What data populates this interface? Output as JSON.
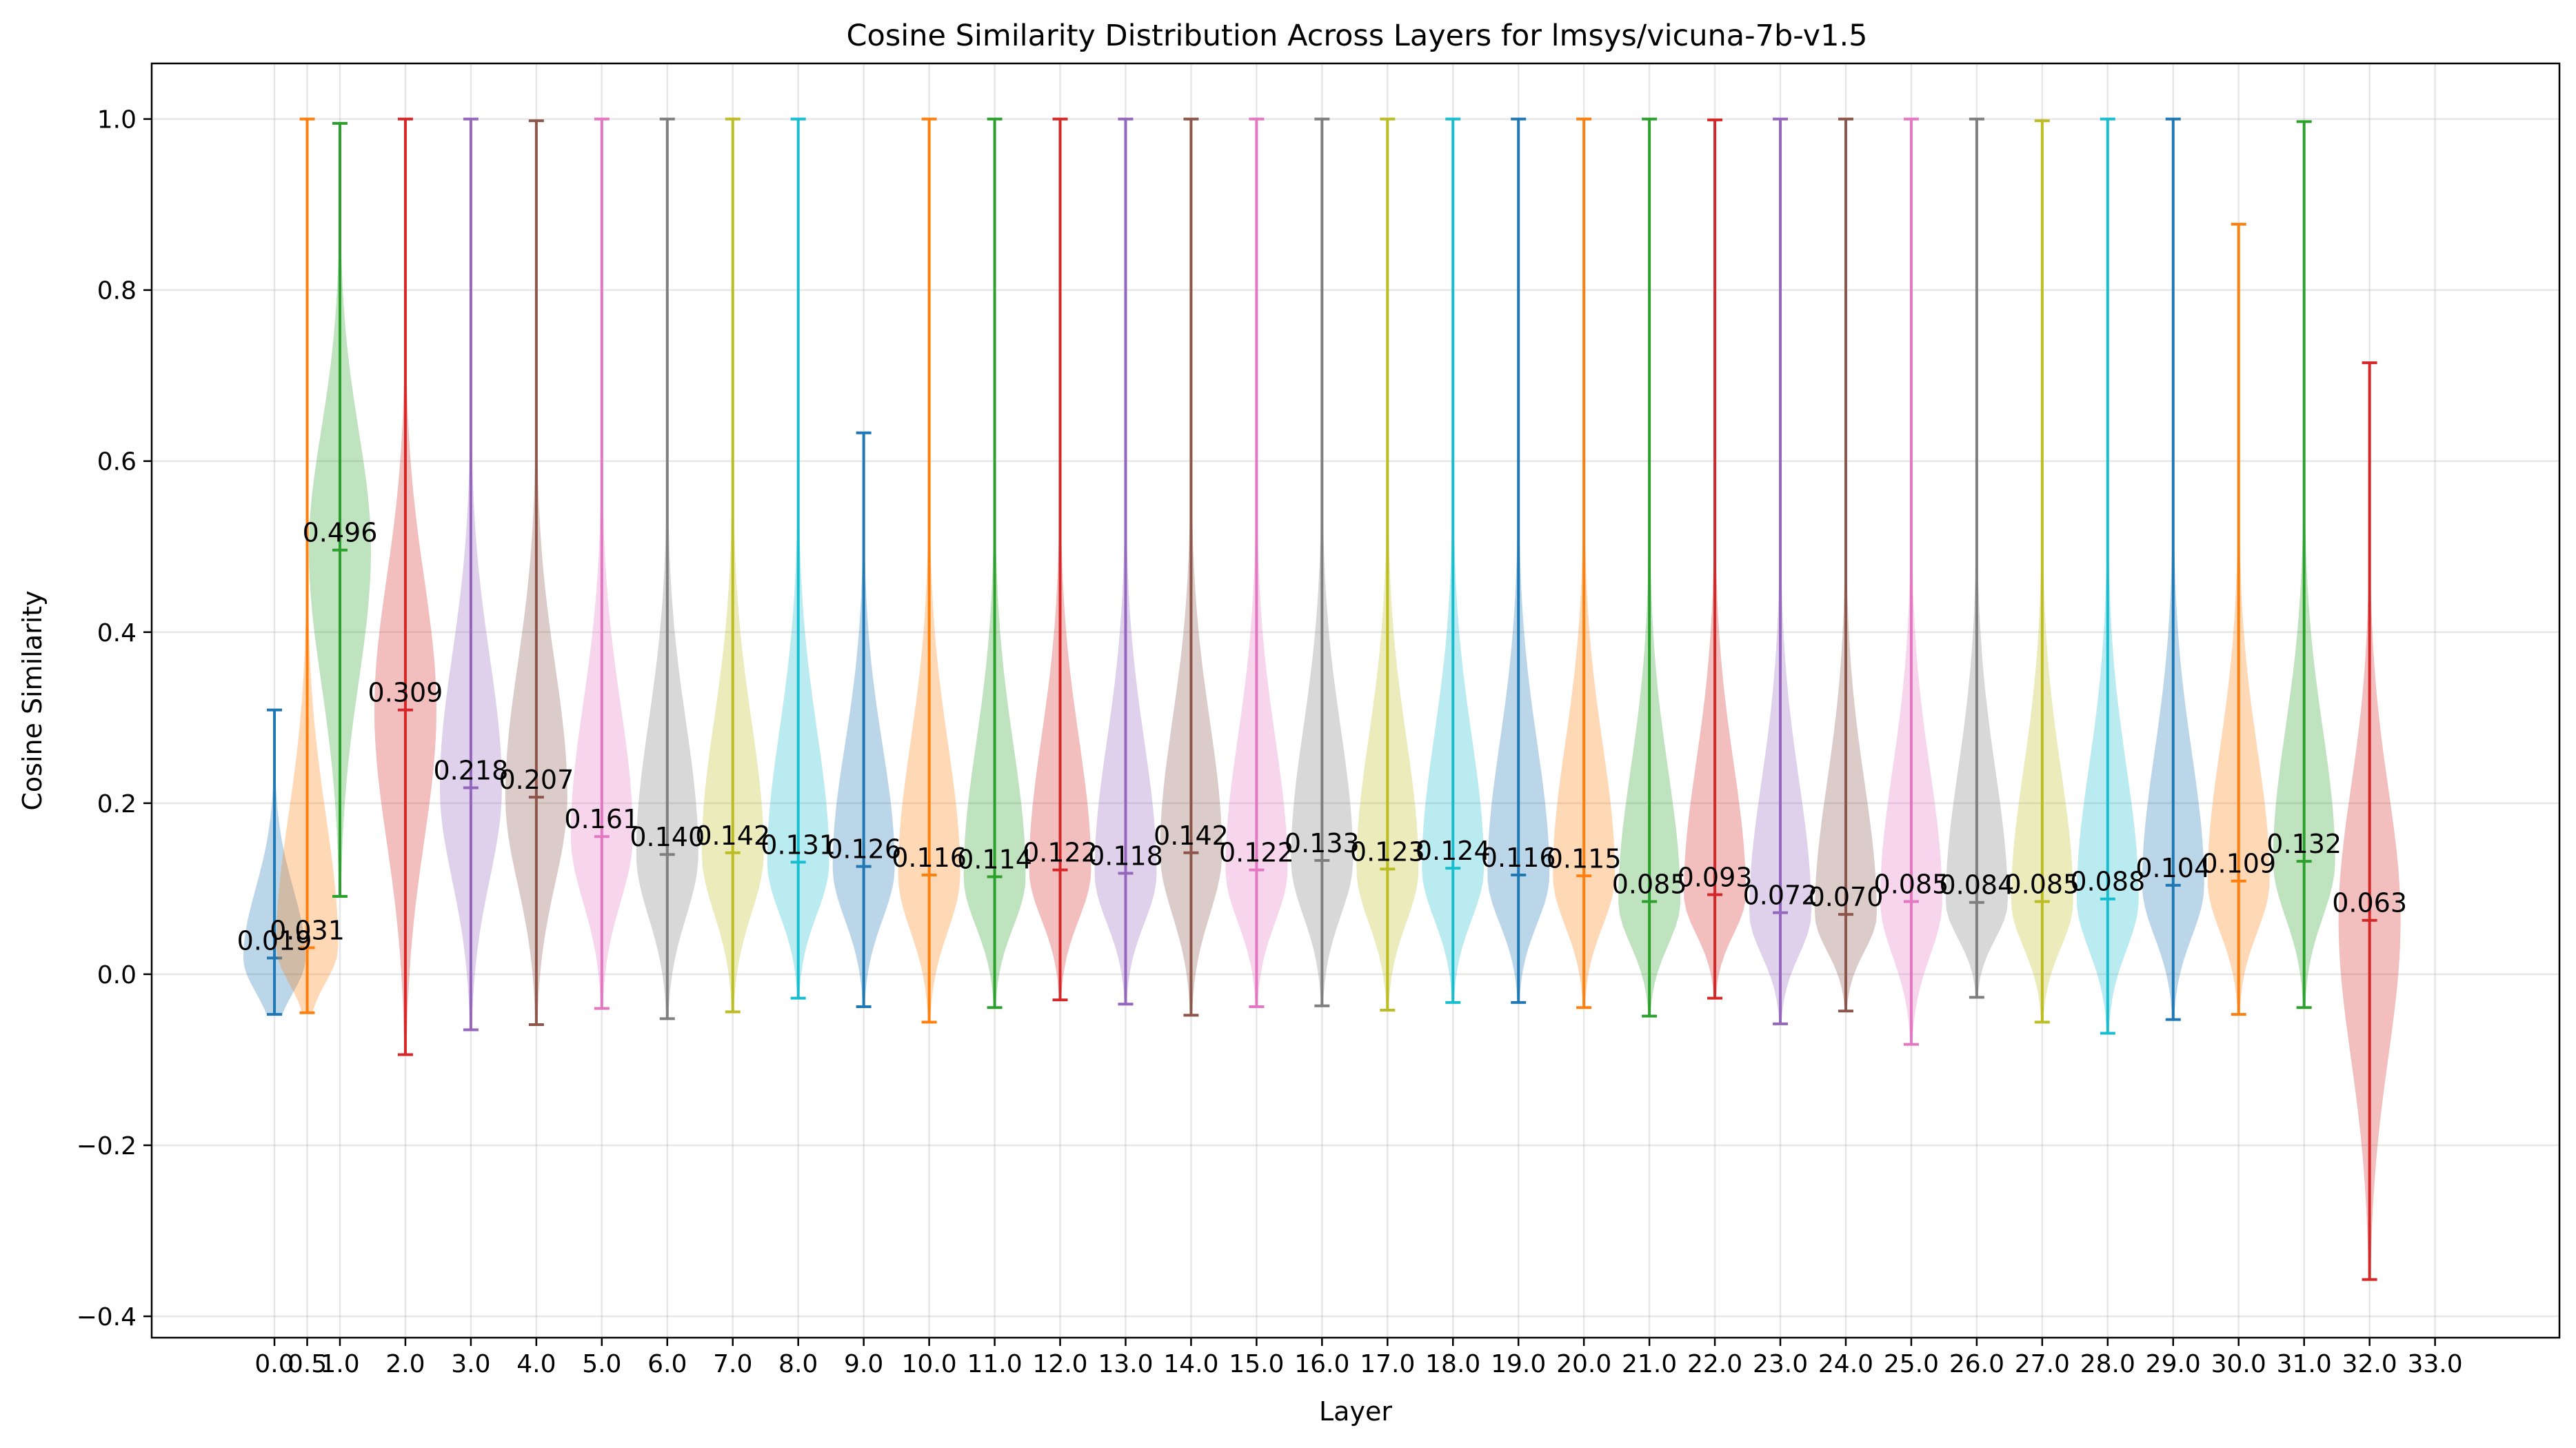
{
  "chart_data": {
    "type": "violin",
    "title": "Cosine Similarity Distribution Across Layers for lmsys/vicuna-7b-v1.5",
    "xlabel": "Layer",
    "ylabel": "Cosine Similarity",
    "ylim": [
      -0.425,
      1.065
    ],
    "yticks": [
      -0.4,
      -0.2,
      0.0,
      0.2,
      0.4,
      0.6,
      0.8,
      1.0
    ],
    "ytick_labels": [
      "−0.4",
      "−0.2",
      "0.0",
      "0.2",
      "0.4",
      "0.6",
      "0.8",
      "1.0"
    ],
    "xticks": [
      0.0,
      0.5,
      1.0,
      2.0,
      3.0,
      4.0,
      5.0,
      6.0,
      7.0,
      8.0,
      9.0,
      10.0,
      11.0,
      12.0,
      13.0,
      14.0,
      15.0,
      16.0,
      17.0,
      18.0,
      19.0,
      20.0,
      21.0,
      22.0,
      23.0,
      24.0,
      25.0,
      26.0,
      27.0,
      28.0,
      29.0,
      30.0,
      31.0,
      32.0,
      33.0
    ],
    "xtick_labels": [
      "0.0",
      "0.5",
      "1.0",
      "2.0",
      "3.0",
      "4.0",
      "5.0",
      "6.0",
      "7.0",
      "8.0",
      "9.0",
      "10.0",
      "11.0",
      "12.0",
      "13.0",
      "14.0",
      "15.0",
      "16.0",
      "17.0",
      "18.0",
      "19.0",
      "20.0",
      "21.0",
      "22.0",
      "23.0",
      "24.0",
      "25.0",
      "26.0",
      "27.0",
      "28.0",
      "29.0",
      "30.0",
      "31.0",
      "32.0",
      "33.0"
    ],
    "grid": true,
    "series": [
      {
        "x": 0.0,
        "min": -0.047,
        "max": 0.309,
        "mean": 0.019,
        "label": "0.019",
        "color": "#1f77b4"
      },
      {
        "x": 0.5,
        "min": -0.045,
        "max": 1.0,
        "mean": 0.031,
        "label": "0.031",
        "color": "#ff7f0e"
      },
      {
        "x": 1.0,
        "min": 0.091,
        "max": 0.995,
        "mean": 0.496,
        "label": "0.496",
        "color": "#2ca02c"
      },
      {
        "x": 2.0,
        "min": -0.094,
        "max": 1.0,
        "mean": 0.309,
        "label": "0.309",
        "color": "#d62728"
      },
      {
        "x": 3.0,
        "min": -0.065,
        "max": 1.0,
        "mean": 0.218,
        "label": "0.218",
        "color": "#9467bd"
      },
      {
        "x": 4.0,
        "min": -0.059,
        "max": 0.998,
        "mean": 0.207,
        "label": "0.207",
        "color": "#8c564b"
      },
      {
        "x": 5.0,
        "min": -0.04,
        "max": 1.0,
        "mean": 0.161,
        "label": "0.161",
        "color": "#e377c2"
      },
      {
        "x": 6.0,
        "min": -0.052,
        "max": 1.0,
        "mean": 0.14,
        "label": "0.140",
        "color": "#7f7f7f"
      },
      {
        "x": 7.0,
        "min": -0.044,
        "max": 1.0,
        "mean": 0.142,
        "label": "0.142",
        "color": "#bcbd22"
      },
      {
        "x": 8.0,
        "min": -0.028,
        "max": 1.0,
        "mean": 0.131,
        "label": "0.131",
        "color": "#17becf"
      },
      {
        "x": 9.0,
        "min": -0.038,
        "max": 0.633,
        "mean": 0.126,
        "label": "0.126",
        "color": "#1f77b4"
      },
      {
        "x": 10.0,
        "min": -0.056,
        "max": 1.0,
        "mean": 0.116,
        "label": "0.116",
        "color": "#ff7f0e"
      },
      {
        "x": 11.0,
        "min": -0.039,
        "max": 1.0,
        "mean": 0.114,
        "label": "0.114",
        "color": "#2ca02c"
      },
      {
        "x": 12.0,
        "min": -0.03,
        "max": 1.0,
        "mean": 0.122,
        "label": "0.122",
        "color": "#d62728"
      },
      {
        "x": 13.0,
        "min": -0.035,
        "max": 1.0,
        "mean": 0.118,
        "label": "0.118",
        "color": "#9467bd"
      },
      {
        "x": 14.0,
        "min": -0.048,
        "max": 1.0,
        "mean": 0.142,
        "label": "0.142",
        "color": "#8c564b"
      },
      {
        "x": 15.0,
        "min": -0.038,
        "max": 1.0,
        "mean": 0.122,
        "label": "0.122",
        "color": "#e377c2"
      },
      {
        "x": 16.0,
        "min": -0.037,
        "max": 1.0,
        "mean": 0.133,
        "label": "0.133",
        "color": "#7f7f7f"
      },
      {
        "x": 17.0,
        "min": -0.042,
        "max": 1.0,
        "mean": 0.123,
        "label": "0.123",
        "color": "#bcbd22"
      },
      {
        "x": 18.0,
        "min": -0.033,
        "max": 1.0,
        "mean": 0.124,
        "label": "0.124",
        "color": "#17becf"
      },
      {
        "x": 19.0,
        "min": -0.033,
        "max": 1.0,
        "mean": 0.116,
        "label": "0.116",
        "color": "#1f77b4"
      },
      {
        "x": 20.0,
        "min": -0.039,
        "max": 1.0,
        "mean": 0.115,
        "label": "0.115",
        "color": "#ff7f0e"
      },
      {
        "x": 21.0,
        "min": -0.049,
        "max": 1.0,
        "mean": 0.085,
        "label": "0.085",
        "color": "#2ca02c"
      },
      {
        "x": 22.0,
        "min": -0.028,
        "max": 0.999,
        "mean": 0.093,
        "label": "0.093",
        "color": "#d62728"
      },
      {
        "x": 23.0,
        "min": -0.058,
        "max": 1.0,
        "mean": 0.072,
        "label": "0.072",
        "color": "#9467bd"
      },
      {
        "x": 24.0,
        "min": -0.043,
        "max": 1.0,
        "mean": 0.07,
        "label": "0.070",
        "color": "#8c564b"
      },
      {
        "x": 25.0,
        "min": -0.082,
        "max": 1.0,
        "mean": 0.085,
        "label": "0.085",
        "color": "#e377c2"
      },
      {
        "x": 26.0,
        "min": -0.027,
        "max": 1.0,
        "mean": 0.084,
        "label": "0.084",
        "color": "#7f7f7f"
      },
      {
        "x": 27.0,
        "min": -0.056,
        "max": 0.998,
        "mean": 0.085,
        "label": "0.085",
        "color": "#bcbd22"
      },
      {
        "x": 28.0,
        "min": -0.069,
        "max": 1.0,
        "mean": 0.088,
        "label": "0.088",
        "color": "#17becf"
      },
      {
        "x": 29.0,
        "min": -0.053,
        "max": 1.0,
        "mean": 0.104,
        "label": "0.104",
        "color": "#1f77b4"
      },
      {
        "x": 30.0,
        "min": -0.047,
        "max": 0.877,
        "mean": 0.109,
        "label": "0.109",
        "color": "#ff7f0e"
      },
      {
        "x": 31.0,
        "min": -0.039,
        "max": 0.997,
        "mean": 0.132,
        "label": "0.132",
        "color": "#2ca02c"
      },
      {
        "x": 32.0,
        "min": -0.357,
        "max": 0.715,
        "mean": 0.063,
        "label": "0.063",
        "color": "#d62728"
      }
    ]
  }
}
